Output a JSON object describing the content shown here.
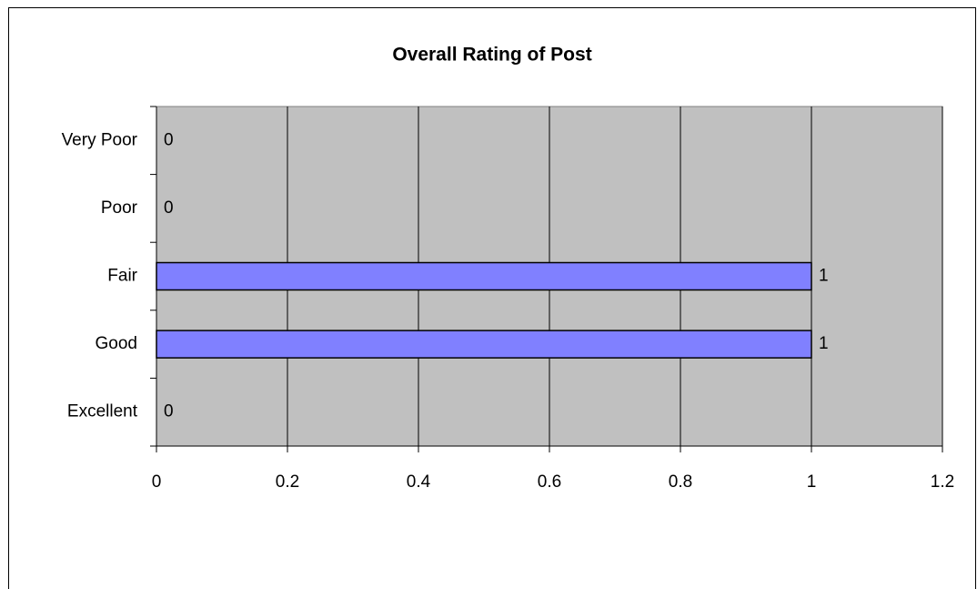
{
  "chart_data": {
    "type": "bar",
    "orientation": "horizontal",
    "title": "Overall Rating of Post",
    "categories": [
      "Very Poor",
      "Poor",
      "Fair",
      "Good",
      "Excellent"
    ],
    "values": [
      0,
      0,
      1,
      1,
      0
    ],
    "color": "#8080ff",
    "xlim": [
      0,
      1.2
    ],
    "xticks": [
      0,
      0.2,
      0.4,
      0.6,
      0.8,
      1,
      1.2
    ],
    "grid": true
  }
}
